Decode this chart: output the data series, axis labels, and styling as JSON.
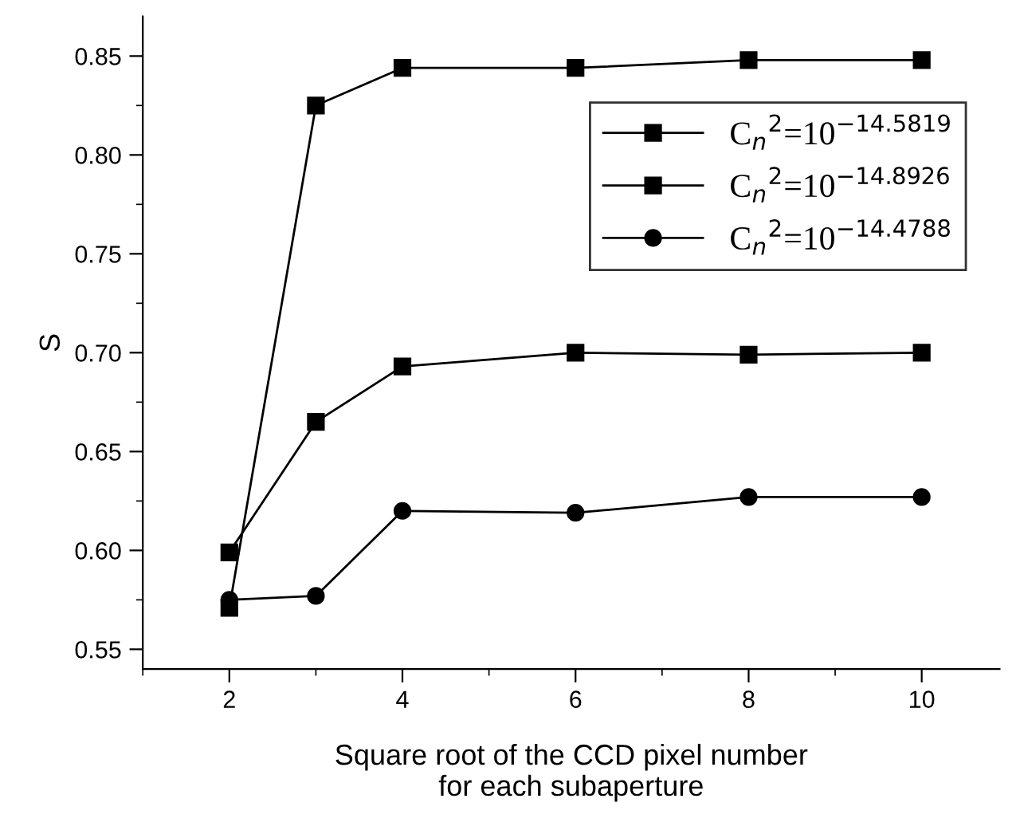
{
  "chart_data": {
    "type": "line",
    "xlabel": "Square root of the CCD pixel number\nfor each subaperture",
    "ylabel": "S",
    "xlim": [
      1,
      10.9
    ],
    "xticks": [
      2,
      4,
      6,
      8,
      10
    ],
    "ylim": [
      0.54,
      0.87
    ],
    "yticks": [
      0.55,
      {
        "value": 0.6,
        "label": "0.60"
      },
      0.65,
      {
        "value": 0.7,
        "label": "0.70"
      },
      0.75,
      {
        "value": 0.8,
        "label": "0.80"
      },
      0.85
    ],
    "grid": false,
    "legend": "right",
    "series": [
      {
        "name": "C$_{n}$$^{2}$=10$^{−14.5819}$",
        "color": "#000000",
        "marker": "square",
        "x": [
          2,
          3,
          4,
          6,
          8,
          10
        ],
        "values": [
          0.599,
          0.665,
          0.693,
          0.7,
          0.699,
          0.7
        ]
      },
      {
        "name": "C$_{n}$$^{2}$=10$^{−14.8926}$",
        "color": "#000000",
        "marker": "square",
        "x": [
          2,
          3,
          4,
          6,
          8,
          10
        ],
        "values": [
          0.571,
          0.825,
          0.844,
          0.844,
          0.848,
          0.848
        ]
      },
      {
        "name": "C$_{n}$$^{2}$=10$^{−14.4788}$",
        "color": "#000000",
        "marker": "circle",
        "x": [
          2,
          3,
          4,
          6,
          8,
          10
        ],
        "values": [
          0.575,
          0.577,
          0.62,
          0.619,
          0.627,
          0.627
        ]
      }
    ]
  }
}
